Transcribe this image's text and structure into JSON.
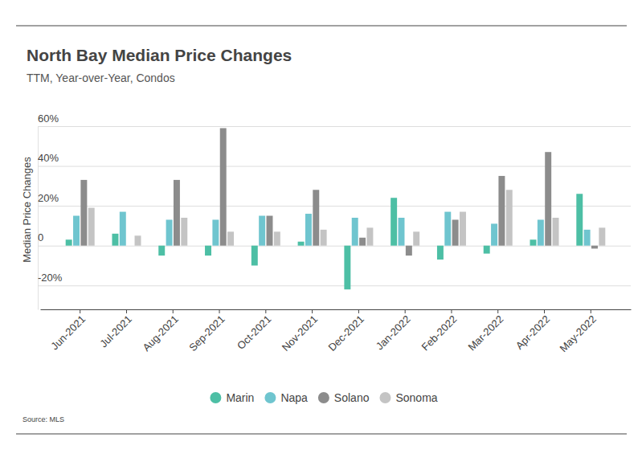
{
  "chart_data": {
    "type": "bar",
    "title": "North Bay Median Price Changes",
    "subtitle": "TTM, Year-over-Year, Condos",
    "y_label": "Median Price Changes",
    "source": "Source: MLS",
    "categories": [
      "Jun-2021",
      "Jul-2021",
      "Aug-2021",
      "Sep-2021",
      "Oct-2021",
      "Nov-2021",
      "Dec-2021",
      "Jan-2022",
      "Feb-2022",
      "Mar-2022",
      "Apr-2022",
      "May-2022"
    ],
    "series": [
      {
        "name": "Marin",
        "color": "#4dbfa5",
        "values": [
          3,
          6,
          -5,
          -5,
          -10,
          2,
          -22,
          24,
          -7,
          -4,
          3,
          26
        ]
      },
      {
        "name": "Napa",
        "color": "#6fc5cf",
        "values": [
          15,
          17,
          13,
          13,
          15,
          16,
          14,
          14,
          17,
          11,
          13,
          8
        ]
      },
      {
        "name": "Solano",
        "color": "#8c8c8c",
        "values": [
          33,
          null,
          33,
          59,
          15,
          28,
          4,
          -5,
          13,
          35,
          47,
          -1.5
        ]
      },
      {
        "name": "Sonoma",
        "color": "#c4c4c4",
        "values": [
          19,
          5,
          14,
          7,
          7,
          8,
          9,
          7,
          17,
          28,
          14,
          9
        ]
      }
    ],
    "ylim": [
      -32,
      60
    ],
    "yticks": [
      {
        "value": -20,
        "label": "-20%"
      },
      0,
      {
        "value": 20,
        "label": "20%"
      },
      {
        "value": 40,
        "label": "40%"
      },
      {
        "value": 60,
        "label": "60%"
      }
    ],
    "grid": true,
    "legend": "bottom"
  }
}
